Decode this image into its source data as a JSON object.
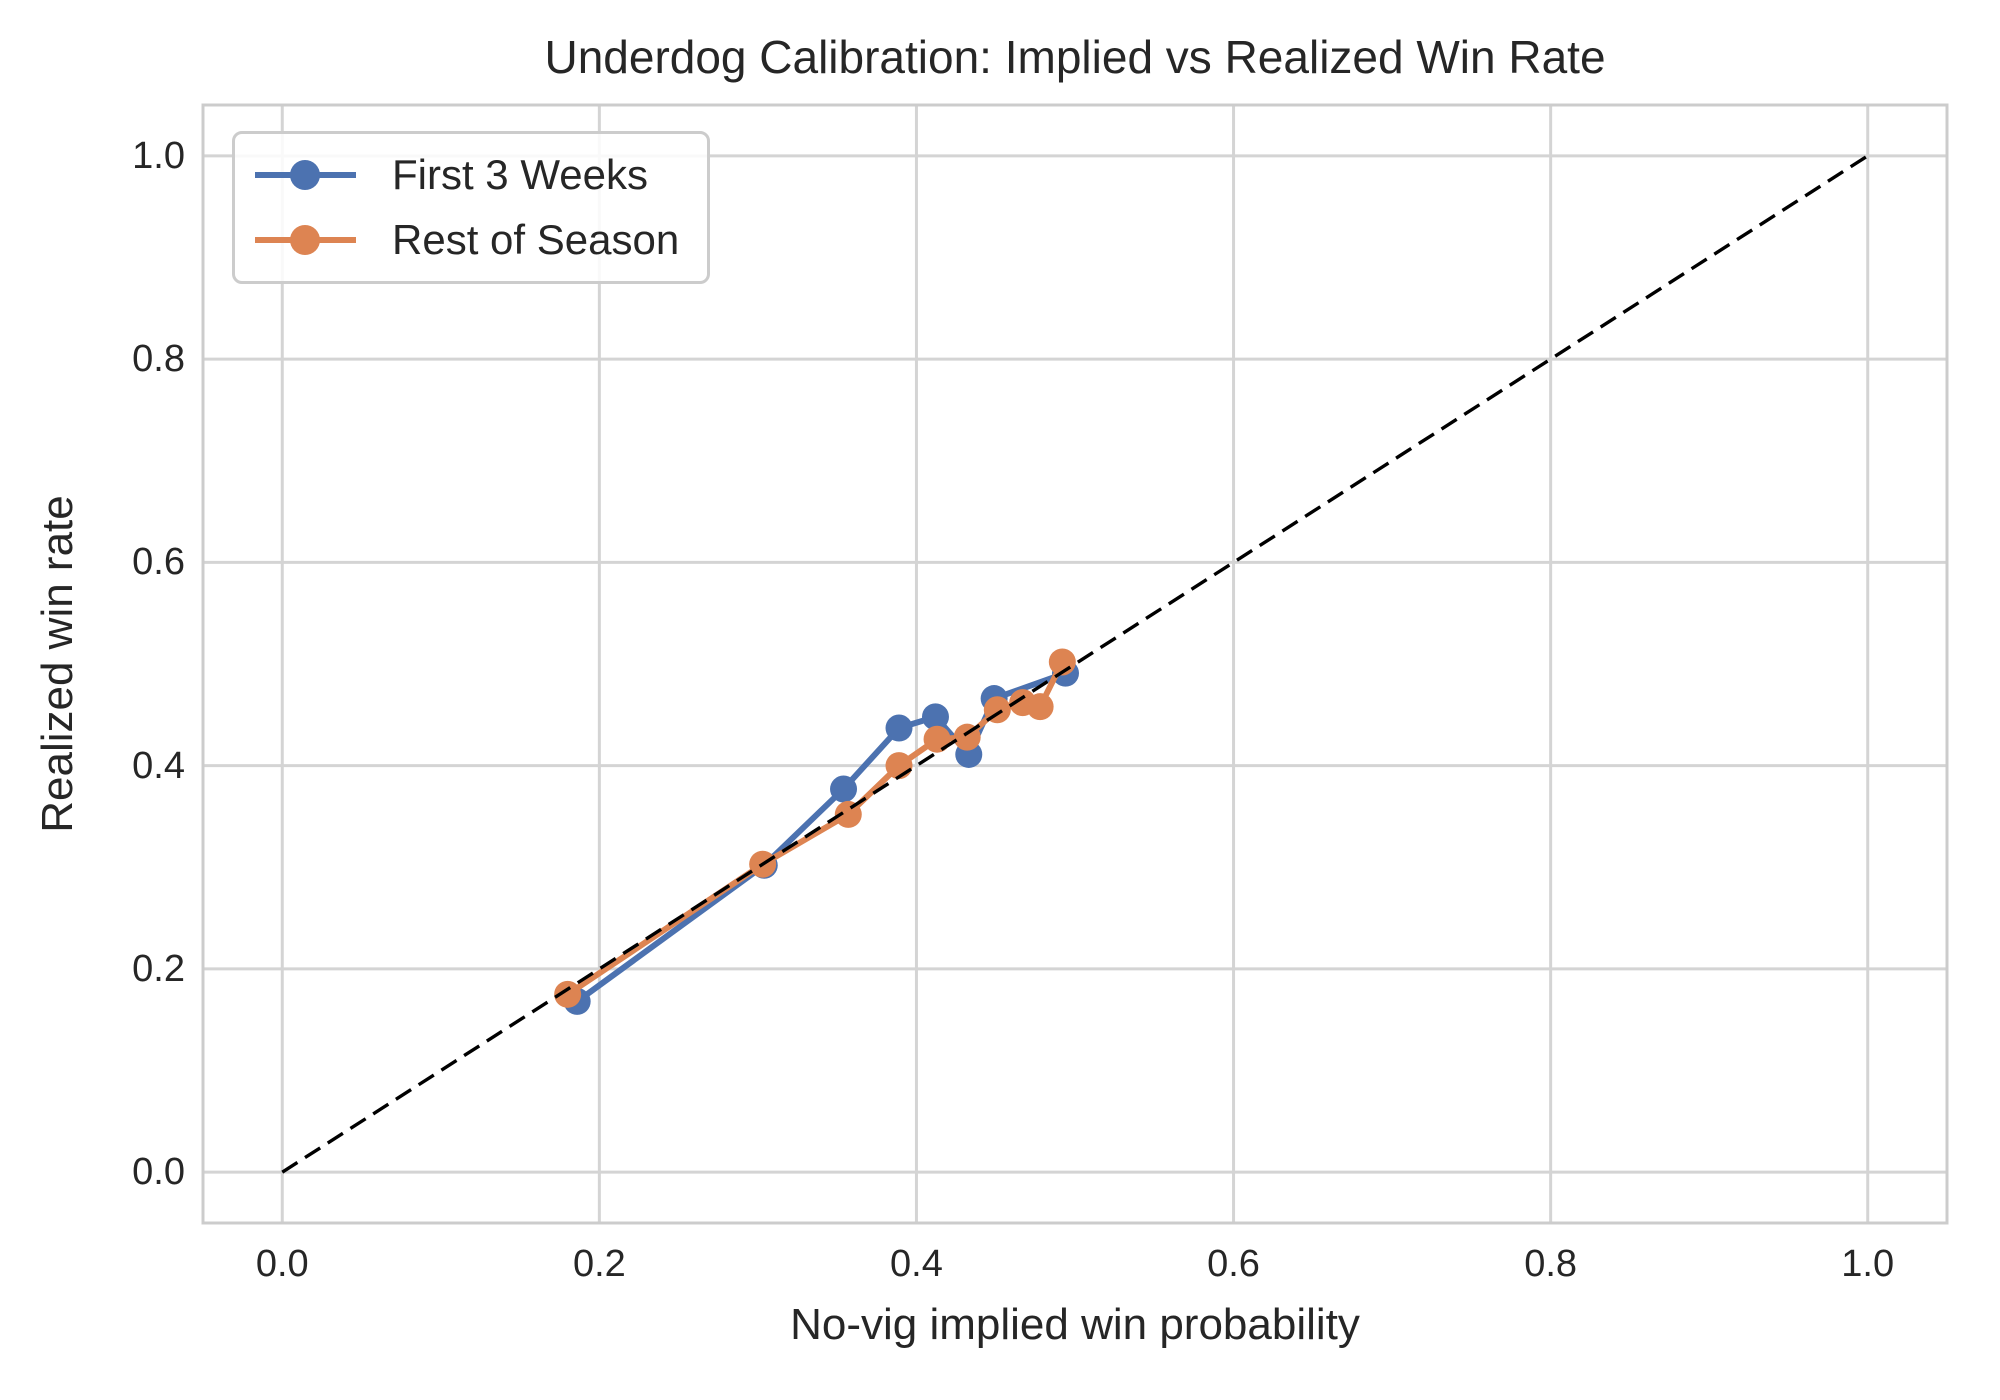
{
  "chart_data": {
    "type": "line",
    "title": "Underdog Calibration: Implied vs Realized Win Rate",
    "xlabel": "No-vig implied win probability",
    "ylabel": "Realized win rate",
    "xlim": [
      -0.05,
      1.05
    ],
    "ylim": [
      -0.05,
      1.05
    ],
    "x_ticks": [
      0.0,
      0.2,
      0.4,
      0.6,
      0.8,
      1.0
    ],
    "x_tick_labels": [
      "0.0",
      "0.2",
      "0.4",
      "0.6",
      "0.8",
      "1.0"
    ],
    "y_ticks": [
      0.0,
      0.2,
      0.4,
      0.6,
      0.8,
      1.0
    ],
    "y_tick_labels": [
      "0.0",
      "0.2",
      "0.4",
      "0.6",
      "0.8",
      "1.0"
    ],
    "grid": true,
    "grid_color": "#d4d4d4",
    "spine_color": "#cccccc",
    "text_color": "#262626",
    "legend_position": "upper left",
    "reference_line": {
      "from": [
        0.0,
        0.0
      ],
      "to": [
        1.0,
        1.0
      ],
      "style": "dashed",
      "color": "#000000"
    },
    "series": [
      {
        "name": "First 3 Weeks",
        "color": "#4C72B0",
        "marker": "circle",
        "points": [
          [
            0.186,
            0.168
          ],
          [
            0.304,
            0.302
          ],
          [
            0.354,
            0.377
          ],
          [
            0.389,
            0.437
          ],
          [
            0.412,
            0.448
          ],
          [
            0.433,
            0.411
          ],
          [
            0.449,
            0.466
          ],
          [
            0.494,
            0.491
          ]
        ]
      },
      {
        "name": "Rest of Season",
        "color": "#DD8452",
        "marker": "circle",
        "points": [
          [
            0.18,
            0.175
          ],
          [
            0.303,
            0.303
          ],
          [
            0.357,
            0.352
          ],
          [
            0.389,
            0.4
          ],
          [
            0.413,
            0.426
          ],
          [
            0.432,
            0.428
          ],
          [
            0.451,
            0.455
          ],
          [
            0.467,
            0.462
          ],
          [
            0.478,
            0.458
          ],
          [
            0.492,
            0.502
          ]
        ]
      }
    ]
  }
}
